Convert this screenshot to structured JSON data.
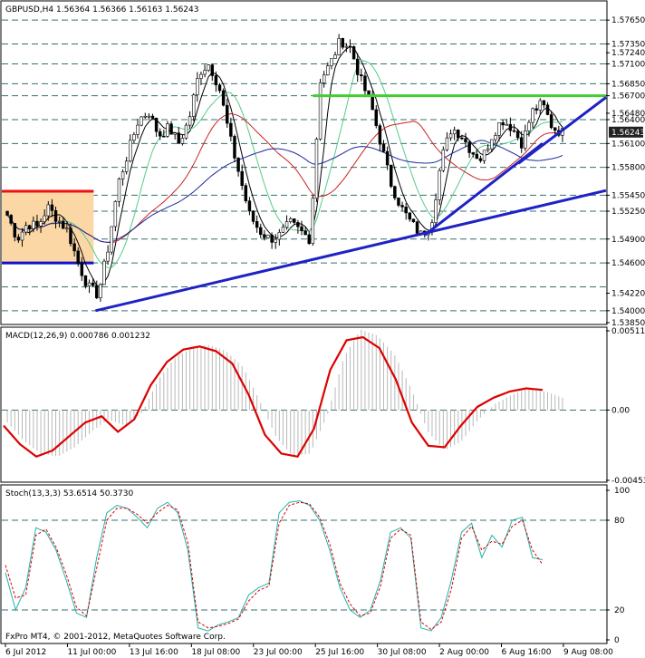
{
  "chart_data": [
    {
      "type": "candlestick",
      "title": "GBPUSD,H4  1.56364 1.56366 1.56163 1.56243",
      "ylim": [
        1.5385,
        1.5772
      ],
      "y_ticks": [
        "1.57650",
        "1.57350",
        "1.57240",
        "1.57100",
        "1.56850",
        "1.56700",
        "1.56480",
        "1.56400",
        "1.56243",
        "1.56100",
        "1.55800",
        "1.55450",
        "1.55250",
        "1.54900",
        "1.54600",
        "1.54220",
        "1.54000",
        "1.53850"
      ],
      "level_lines": [
        1.5765,
        1.5735,
        1.571,
        1.5685,
        1.567,
        1.564,
        1.561,
        1.558,
        1.5545,
        1.5525,
        1.549,
        1.546,
        1.543,
        1.54
      ],
      "current_price": 1.56243,
      "resistance_level": 1.567,
      "range_box": {
        "top": 1.555,
        "bottom": 1.546
      },
      "trendlines": [
        {
          "from": [
            0.0,
            1.54
          ],
          "to": [
            1.0,
            1.5551
          ]
        },
        {
          "from": [
            0.35,
            1.5495
          ],
          "to": [
            1.0,
            1.567
          ]
        }
      ],
      "close_path": [
        1.552,
        1.549,
        1.551,
        1.5505,
        1.553,
        1.5515,
        1.55,
        1.546,
        1.543,
        1.542,
        1.548,
        1.556,
        1.56,
        1.564,
        1.565,
        1.562,
        1.563,
        1.561,
        1.564,
        1.57,
        1.571,
        1.568,
        1.562,
        1.557,
        1.552,
        1.55,
        1.549,
        1.5495,
        1.551,
        1.55,
        1.549,
        1.569,
        1.571,
        1.574,
        1.573,
        1.569,
        1.566,
        1.561,
        1.556,
        1.553,
        1.551,
        1.5495,
        1.551,
        1.559,
        1.563,
        1.562,
        1.56,
        1.559,
        1.562,
        1.564,
        1.563,
        1.561,
        1.565,
        1.566,
        1.563,
        1.5624
      ]
    },
    {
      "type": "line",
      "title": "MACD(12,26,9) 0.000786 0.001232",
      "ylim": [
        -0.00453,
        0.00511
      ],
      "y_ticks": [
        "0.00511",
        "0.00",
        "-0.00453"
      ],
      "signal": [
        -0.001,
        -0.0022,
        -0.003,
        -0.0026,
        -0.0017,
        -0.0008,
        -0.0004,
        -0.0014,
        -0.0006,
        0.0016,
        0.0031,
        0.0039,
        0.0041,
        0.0038,
        0.003,
        0.001,
        -0.0016,
        -0.0028,
        -0.003,
        -0.0012,
        0.0026,
        0.0045,
        0.0047,
        0.004,
        0.002,
        -0.0008,
        -0.0023,
        -0.0024,
        -0.001,
        0.0002,
        0.0008,
        0.0012,
        0.0014,
        0.0013
      ],
      "histogram": [
        -0.0008,
        -0.002,
        -0.0028,
        -0.003,
        -0.0024,
        -0.0014,
        -0.0006,
        -0.001,
        -0.0002,
        0.002,
        0.0034,
        0.004,
        0.0042,
        0.0038,
        0.0028,
        0.0006,
        -0.0018,
        -0.003,
        -0.0028,
        -0.0004,
        0.0034,
        0.0052,
        0.0048,
        0.0036,
        0.0014,
        -0.0014,
        -0.0026,
        -0.002,
        -0.0006,
        0.0004,
        0.001,
        0.0014,
        0.0012,
        0.0008
      ]
    },
    {
      "type": "line",
      "title": "Stoch(13,3,3) 53.6514 50.3730",
      "ylim": [
        0,
        100
      ],
      "y_ticks": [
        "100",
        "80",
        "20",
        "0"
      ],
      "main": [
        45,
        20,
        35,
        75,
        72,
        60,
        40,
        18,
        15,
        55,
        85,
        90,
        88,
        82,
        75,
        88,
        92,
        85,
        60,
        8,
        6,
        10,
        12,
        15,
        30,
        35,
        38,
        85,
        92,
        93,
        90,
        80,
        60,
        35,
        20,
        15,
        20,
        40,
        72,
        75,
        68,
        8,
        6,
        15,
        40,
        72,
        78,
        55,
        70,
        62,
        80,
        82,
        55,
        53.6514
      ],
      "signal": [
        50,
        28,
        30,
        70,
        74,
        62,
        44,
        22,
        16,
        48,
        80,
        88,
        88,
        84,
        78,
        85,
        90,
        87,
        65,
        12,
        8,
        9,
        11,
        14,
        26,
        33,
        36,
        78,
        90,
        92,
        91,
        82,
        64,
        38,
        24,
        16,
        18,
        36,
        68,
        74,
        70,
        12,
        7,
        12,
        34,
        68,
        76,
        60,
        66,
        64,
        76,
        80,
        60,
        50.373
      ],
      "levels": [
        20,
        80
      ]
    }
  ],
  "x_labels": [
    "6 Jul 2012",
    "11 Jul 00:00",
    "13 Jul 16:00",
    "18 Jul 08:00",
    "23 Jul 00:00",
    "25 Jul 16:00",
    "30 Jul 08:00",
    "2 Aug 00:00",
    "6 Aug 16:00",
    "9 Aug 08:00"
  ],
  "copyright": "FxPro MT4, © 2001-2012, MetaQuotes Software Corp.",
  "colors": {
    "background": "#ffffff",
    "grid_dash": "#3a6f6f",
    "bull_body": "#ffffff",
    "bear_body": "#000000",
    "trendline": "#1f22c4",
    "resistance": "#44cc33",
    "macd_signal": "#dd0000",
    "stoch_main": "#20b2aa",
    "stoch_signal": "#dd0000",
    "ma_fast": "#000000",
    "ma_mid": "#cc2222",
    "ma_slow": "#1a2a99",
    "ma_green": "#55cc88",
    "range_fill": "#fbd7a6",
    "range_top": "#ee1111",
    "range_bottom": "#1111cc",
    "price_tag": "#222222"
  }
}
